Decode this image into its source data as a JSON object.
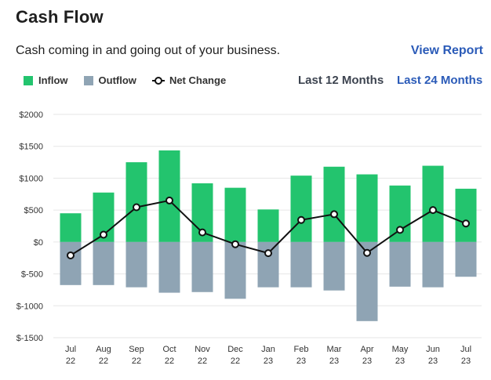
{
  "header": {
    "title": "Cash Flow",
    "subtitle": "Cash coming in and going out of your business.",
    "view_report_label": "View Report"
  },
  "legend": {
    "inflow_label": "Inflow",
    "outflow_label": "Outflow",
    "net_change_label": "Net Change"
  },
  "period": {
    "last_12_label": "Last 12 Months",
    "last_24_label": "Last 24 Months"
  },
  "colors": {
    "inflow": "#23c46e",
    "outflow": "#8fa4b4",
    "net_change": "#111111",
    "link": "#2b5bb8"
  },
  "chart_data": {
    "type": "bar",
    "categories": [
      [
        "Jul",
        "22"
      ],
      [
        "Aug",
        "22"
      ],
      [
        "Sep",
        "22"
      ],
      [
        "Oct",
        "22"
      ],
      [
        "Nov",
        "22"
      ],
      [
        "Dec",
        "22"
      ],
      [
        "Jan",
        "23"
      ],
      [
        "Feb",
        "23"
      ],
      [
        "Mar",
        "23"
      ],
      [
        "Apr",
        "23"
      ],
      [
        "May",
        "23"
      ],
      [
        "Jun",
        "23"
      ],
      [
        "Jul",
        "23"
      ]
    ],
    "series": [
      {
        "name": "Inflow",
        "type": "bar",
        "values": [
          450,
          775,
          1250,
          1435,
          920,
          850,
          510,
          1040,
          1180,
          1060,
          885,
          1195,
          835
        ]
      },
      {
        "name": "Outflow",
        "type": "bar",
        "values": [
          -675,
          -675,
          -710,
          -795,
          -785,
          -890,
          -710,
          -710,
          -760,
          -1240,
          -700,
          -710,
          -545
        ]
      },
      {
        "name": "Net Change",
        "type": "line",
        "values": [
          -210,
          115,
          545,
          650,
          150,
          -35,
          -175,
          345,
          435,
          -170,
          190,
          500,
          290
        ]
      }
    ],
    "y_ticks": [
      "$2000",
      "$1500",
      "$1000",
      "$500",
      "$0",
      "$-500",
      "$-1000",
      "$-1500"
    ],
    "ylim": [
      -1500,
      2000
    ],
    "grid": true,
    "legend_position": "top-left"
  }
}
